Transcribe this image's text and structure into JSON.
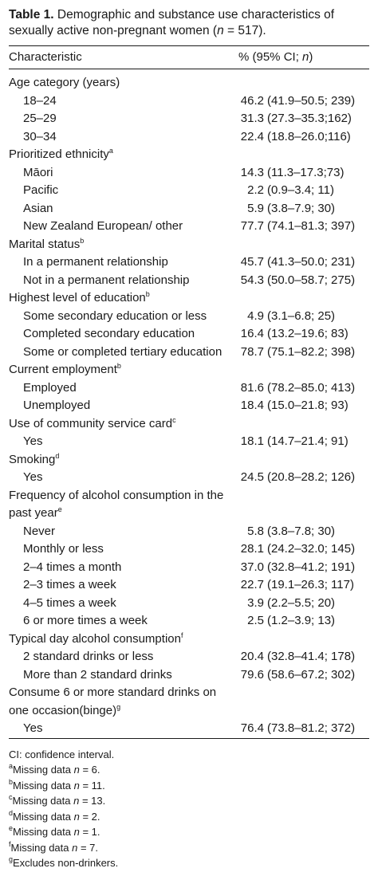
{
  "caption": {
    "label": "Table 1.",
    "text_a": " Demographic and substance use characteristics of sexually active non-pregnant women (",
    "text_n": "n",
    "text_b": " = 517)."
  },
  "header": {
    "col1": "Characteristic",
    "col2": "% (95% CI; n)"
  },
  "rows": [
    {
      "type": "group",
      "label": "Age category (years)"
    },
    {
      "type": "sub",
      "label": "18–24",
      "pct": "46.2",
      "ci": "(41.9–50.5; 239)"
    },
    {
      "type": "sub",
      "label": "25–29",
      "pct": "31.3",
      "ci": "(27.3–35.3;162)"
    },
    {
      "type": "sub",
      "label": "30–34",
      "pct": "22.4",
      "ci": "(18.8–26.0;116)"
    },
    {
      "type": "group",
      "label": "Prioritized ethnicity",
      "sup": "a"
    },
    {
      "type": "sub",
      "label": "Māori",
      "pct": "14.3",
      "ci": "(11.3–17.3;73)"
    },
    {
      "type": "sub",
      "label": "Pacific",
      "pct": "2.2",
      "ci": "(0.9–3.4; 11)"
    },
    {
      "type": "sub",
      "label": "Asian",
      "pct": "5.9",
      "ci": "(3.8–7.9; 30)"
    },
    {
      "type": "sub",
      "label": "New Zealand European/ other",
      "pct": "77.7",
      "ci": "(74.1–81.3; 397)"
    },
    {
      "type": "group",
      "label": "Marital status",
      "sup": "b"
    },
    {
      "type": "sub",
      "label": "In a permanent relationship",
      "pct": "45.7",
      "ci": "(41.3–50.0; 231)"
    },
    {
      "type": "sub",
      "label": "Not in a permanent relationship",
      "pct": "54.3",
      "ci": "(50.0–58.7; 275)"
    },
    {
      "type": "group",
      "label": "Highest level of education",
      "sup": "b"
    },
    {
      "type": "sub",
      "label": "Some secondary education or less",
      "pct": "4.9",
      "ci": "(3.1–6.8; 25)"
    },
    {
      "type": "sub",
      "label": "Completed secondary education",
      "pct": "16.4",
      "ci": "(13.2–19.6; 83)"
    },
    {
      "type": "sub",
      "label": "Some or completed tertiary education",
      "pct": "78.7",
      "ci": "(75.1–82.2; 398)"
    },
    {
      "type": "group",
      "label": "Current employment",
      "sup": "b"
    },
    {
      "type": "sub",
      "label": "Employed",
      "pct": "81.6",
      "ci": "(78.2–85.0; 413)"
    },
    {
      "type": "sub",
      "label": "Unemployed",
      "pct": "18.4",
      "ci": "(15.0–21.8; 93)"
    },
    {
      "type": "group",
      "label": "Use of community service card",
      "sup": "c"
    },
    {
      "type": "sub",
      "label": "Yes",
      "pct": "18.1",
      "ci": "(14.7–21.4; 91)"
    },
    {
      "type": "group",
      "label": "Smoking",
      "sup": "d"
    },
    {
      "type": "sub",
      "label": "Yes",
      "pct": "24.5",
      "ci": "(20.8–28.2; 126)"
    },
    {
      "type": "group",
      "label": "Frequency of alcohol consumption in the past year",
      "sup": "e"
    },
    {
      "type": "sub",
      "label": "Never",
      "pct": "5.8",
      "ci": "(3.8–7.8; 30)"
    },
    {
      "type": "sub",
      "label": "Monthly or less",
      "pct": "28.1",
      "ci": "(24.2–32.0; 145)"
    },
    {
      "type": "sub",
      "label": "2–4 times a month",
      "pct": "37.0",
      "ci": "(32.8–41.2; 191)"
    },
    {
      "type": "sub",
      "label": "2–3 times a week",
      "pct": "22.7",
      "ci": "(19.1–26.3; 117)"
    },
    {
      "type": "sub",
      "label": "4–5 times a week",
      "pct": "3.9",
      "ci": "(2.2–5.5; 20)"
    },
    {
      "type": "sub",
      "label": "6 or more times a week",
      "pct": "2.5",
      "ci": "(1.2–3.9; 13)"
    },
    {
      "type": "group",
      "label": "Typical day alcohol consumption",
      "sup": "f"
    },
    {
      "type": "sub",
      "label": "2 standard drinks or less",
      "pct": "20.4",
      "ci": "(32.8–41.4; 178)"
    },
    {
      "type": "sub",
      "label": "More than 2 standard drinks",
      "pct": "79.6",
      "ci": "(58.6–67.2; 302)"
    },
    {
      "type": "group",
      "label": "Consume 6 or more standard drinks on one occasion(binge)",
      "sup": "g"
    },
    {
      "type": "sub",
      "label": "Yes",
      "pct": "76.4",
      "ci": "(73.8–81.2; 372)"
    }
  ],
  "notes": [
    {
      "sup": "",
      "text": "CI: confidence interval."
    },
    {
      "sup": "a",
      "pre": "Missing data ",
      "n": "n",
      "post": " = 6."
    },
    {
      "sup": "b",
      "pre": "Missing data ",
      "n": "n",
      "post": " = 11."
    },
    {
      "sup": "c",
      "pre": "Missing data ",
      "n": "n",
      "post": " = 13."
    },
    {
      "sup": "d",
      "pre": "Missing data ",
      "n": "n",
      "post": " = 2."
    },
    {
      "sup": "e",
      "pre": "Missing data ",
      "n": "n",
      "post": " = 1."
    },
    {
      "sup": "f",
      "pre": "Missing data ",
      "n": "n",
      "post": " = 7."
    },
    {
      "sup": "g",
      "text": "Excludes non-drinkers."
    }
  ]
}
